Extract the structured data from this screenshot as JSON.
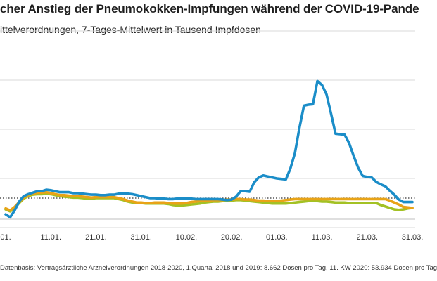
{
  "title": "cher Anstieg der Pneumokokken-Impfungen während der COVID-19-Pande",
  "subtitle": "ittelverordnungen, 7-Tages-Mittelwert in Tausend Impfdosen",
  "source": "Datenbasis: Vertragsärztliche Arzneiverordnungen 2018-2020, 1.Quartal 2018 und 2019: 8.662 Dosen pro Tag, 11. KW 2020: 53.934 Dosen pro Tag",
  "chart_data": {
    "type": "line",
    "title": "",
    "xlabel": "",
    "ylabel": "",
    "x_ticks": [
      "01.",
      "11.01.",
      "21.01.",
      "31.01.",
      "10.02.",
      "20.02.",
      "01.03.",
      "11.03.",
      "21.03.",
      "31.03."
    ],
    "x_range": [
      1,
      91
    ],
    "reference_line": {
      "style": "dotted",
      "color": "#333333"
    },
    "grid": "horizontal",
    "series": [
      {
        "color": "#1B8DC8",
        "x": [
          1,
          2,
          3,
          4,
          5,
          6,
          7,
          8,
          9,
          10,
          11,
          12,
          13,
          14,
          15,
          16,
          17,
          18,
          19,
          20,
          21,
          22,
          23,
          24,
          25,
          26,
          27,
          28,
          29,
          30,
          31,
          32,
          33,
          34,
          35,
          36,
          37,
          38,
          39,
          40,
          41,
          42,
          43,
          44,
          45,
          46,
          47,
          48,
          49,
          50,
          51,
          52,
          53,
          54,
          55,
          56,
          57,
          58,
          59,
          60,
          61,
          62,
          63,
          64,
          65,
          66,
          67,
          68,
          69,
          70,
          71,
          72,
          73,
          74,
          75,
          76,
          77,
          78,
          79,
          80,
          81,
          82,
          83,
          84,
          85,
          86,
          87,
          88,
          89,
          90,
          91
        ],
        "values": [
          12.7,
          12.1,
          13.5,
          15.3,
          16.4,
          16.8,
          17.1,
          17.4,
          17.4,
          17.7,
          17.6,
          17.4,
          17.2,
          17.2,
          17.2,
          17.0,
          17.0,
          16.9,
          16.8,
          16.7,
          16.7,
          16.6,
          16.6,
          16.7,
          16.7,
          16.9,
          16.9,
          16.9,
          16.8,
          16.6,
          16.4,
          16.2,
          16.0,
          16.0,
          15.9,
          15.9,
          15.8,
          15.8,
          15.9,
          15.9,
          15.9,
          15.9,
          15.8,
          15.8,
          15.8,
          15.8,
          15.8,
          15.8,
          15.7,
          15.6,
          15.7,
          16.3,
          17.4,
          17.4,
          17.3,
          19.2,
          20.2,
          20.6,
          20.4,
          20.2,
          20.0,
          19.9,
          19.8,
          22.0,
          25.1,
          30.2,
          34.8,
          35.0,
          35.1,
          39.8,
          39.0,
          37.1,
          33.2,
          29.1,
          29.0,
          28.9,
          27.2,
          24.6,
          22.2,
          20.5,
          20.3,
          20.2,
          19.3,
          18.8,
          18.4,
          17.5,
          16.7,
          15.7,
          15.2,
          15.2,
          15.2
        ]
      },
      {
        "color": "#E8A317",
        "x": [
          1,
          2,
          3,
          4,
          5,
          6,
          7,
          8,
          9,
          10,
          11,
          12,
          13,
          14,
          15,
          16,
          17,
          18,
          19,
          20,
          21,
          22,
          23,
          24,
          25,
          26,
          27,
          28,
          29,
          30,
          31,
          32,
          33,
          34,
          35,
          36,
          37,
          38,
          39,
          40,
          41,
          42,
          43,
          44,
          45,
          46,
          47,
          48,
          49,
          50,
          51,
          52,
          53,
          54,
          55,
          56,
          57,
          58,
          59,
          60,
          61,
          62,
          63,
          64,
          65,
          66,
          67,
          68,
          69,
          70,
          71,
          72,
          73,
          74,
          75,
          76,
          77,
          78,
          79,
          80,
          81,
          82,
          83,
          84,
          85,
          86,
          87,
          88,
          89,
          90,
          91
        ],
        "values": [
          13.9,
          13.5,
          14.2,
          15.2,
          16.1,
          16.6,
          16.9,
          17.1,
          17.1,
          17.2,
          17.0,
          16.8,
          16.6,
          16.6,
          16.5,
          16.4,
          16.4,
          16.3,
          16.2,
          16.1,
          16.2,
          16.2,
          16.2,
          16.2,
          16.2,
          16.0,
          15.8,
          15.5,
          15.3,
          15.1,
          15.1,
          15.0,
          15.0,
          15.1,
          15.1,
          15.1,
          15.0,
          14.9,
          14.9,
          14.9,
          15.0,
          15.2,
          15.3,
          15.4,
          15.5,
          15.5,
          15.6,
          15.6,
          15.6,
          15.7,
          15.7,
          15.8,
          15.8,
          15.7,
          15.7,
          15.6,
          15.5,
          15.5,
          15.4,
          15.4,
          15.4,
          15.5,
          15.6,
          15.7,
          15.8,
          15.8,
          15.8,
          15.8,
          15.8,
          15.8,
          15.8,
          15.8,
          15.8,
          15.8,
          15.8,
          15.8,
          15.8,
          15.8,
          15.8,
          15.8,
          15.8,
          15.8,
          15.8,
          15.8,
          15.8,
          15.5,
          15.1,
          14.7,
          14.2,
          14.1,
          14.0
        ]
      },
      {
        "color": "#A3C124",
        "x": [
          1,
          2,
          3,
          4,
          5,
          6,
          7,
          8,
          9,
          10,
          11,
          12,
          13,
          14,
          15,
          16,
          17,
          18,
          19,
          20,
          21,
          22,
          23,
          24,
          25,
          26,
          27,
          28,
          29,
          30,
          31,
          32,
          33,
          34,
          35,
          36,
          37,
          38,
          39,
          40,
          41,
          42,
          43,
          44,
          45,
          46,
          47,
          48,
          49,
          50,
          51,
          52,
          53,
          54,
          55,
          56,
          57,
          58,
          59,
          60,
          61,
          62,
          63,
          64,
          65,
          66,
          67,
          68,
          69,
          70,
          71,
          72,
          73,
          74,
          75,
          76,
          77,
          78,
          79,
          80,
          81,
          82,
          83,
          84,
          85,
          86,
          87,
          88,
          89,
          90,
          91
        ],
        "values": [
          13.7,
          13.3,
          14.0,
          15.0,
          15.9,
          16.4,
          16.7,
          16.8,
          16.8,
          16.9,
          16.8,
          16.6,
          16.4,
          16.3,
          16.2,
          16.1,
          16.1,
          16.0,
          15.9,
          15.9,
          16.0,
          16.0,
          16.0,
          16.0,
          16.0,
          15.8,
          15.6,
          15.3,
          15.1,
          15.0,
          15.0,
          14.9,
          14.9,
          14.9,
          14.9,
          14.9,
          14.8,
          14.6,
          14.5,
          14.5,
          14.6,
          14.7,
          14.8,
          14.9,
          15.1,
          15.2,
          15.3,
          15.3,
          15.4,
          15.5,
          15.5,
          15.6,
          15.6,
          15.5,
          15.4,
          15.3,
          15.2,
          15.1,
          15.0,
          14.9,
          14.9,
          14.9,
          14.9,
          15.0,
          15.1,
          15.2,
          15.3,
          15.4,
          15.4,
          15.4,
          15.3,
          15.3,
          15.2,
          15.1,
          15.1,
          15.1,
          15.0,
          15.0,
          15.0,
          15.0,
          15.0,
          15.0,
          15.0,
          14.6,
          14.3,
          14.0,
          13.7,
          13.6,
          13.7,
          13.9,
          14.0
        ]
      }
    ]
  }
}
